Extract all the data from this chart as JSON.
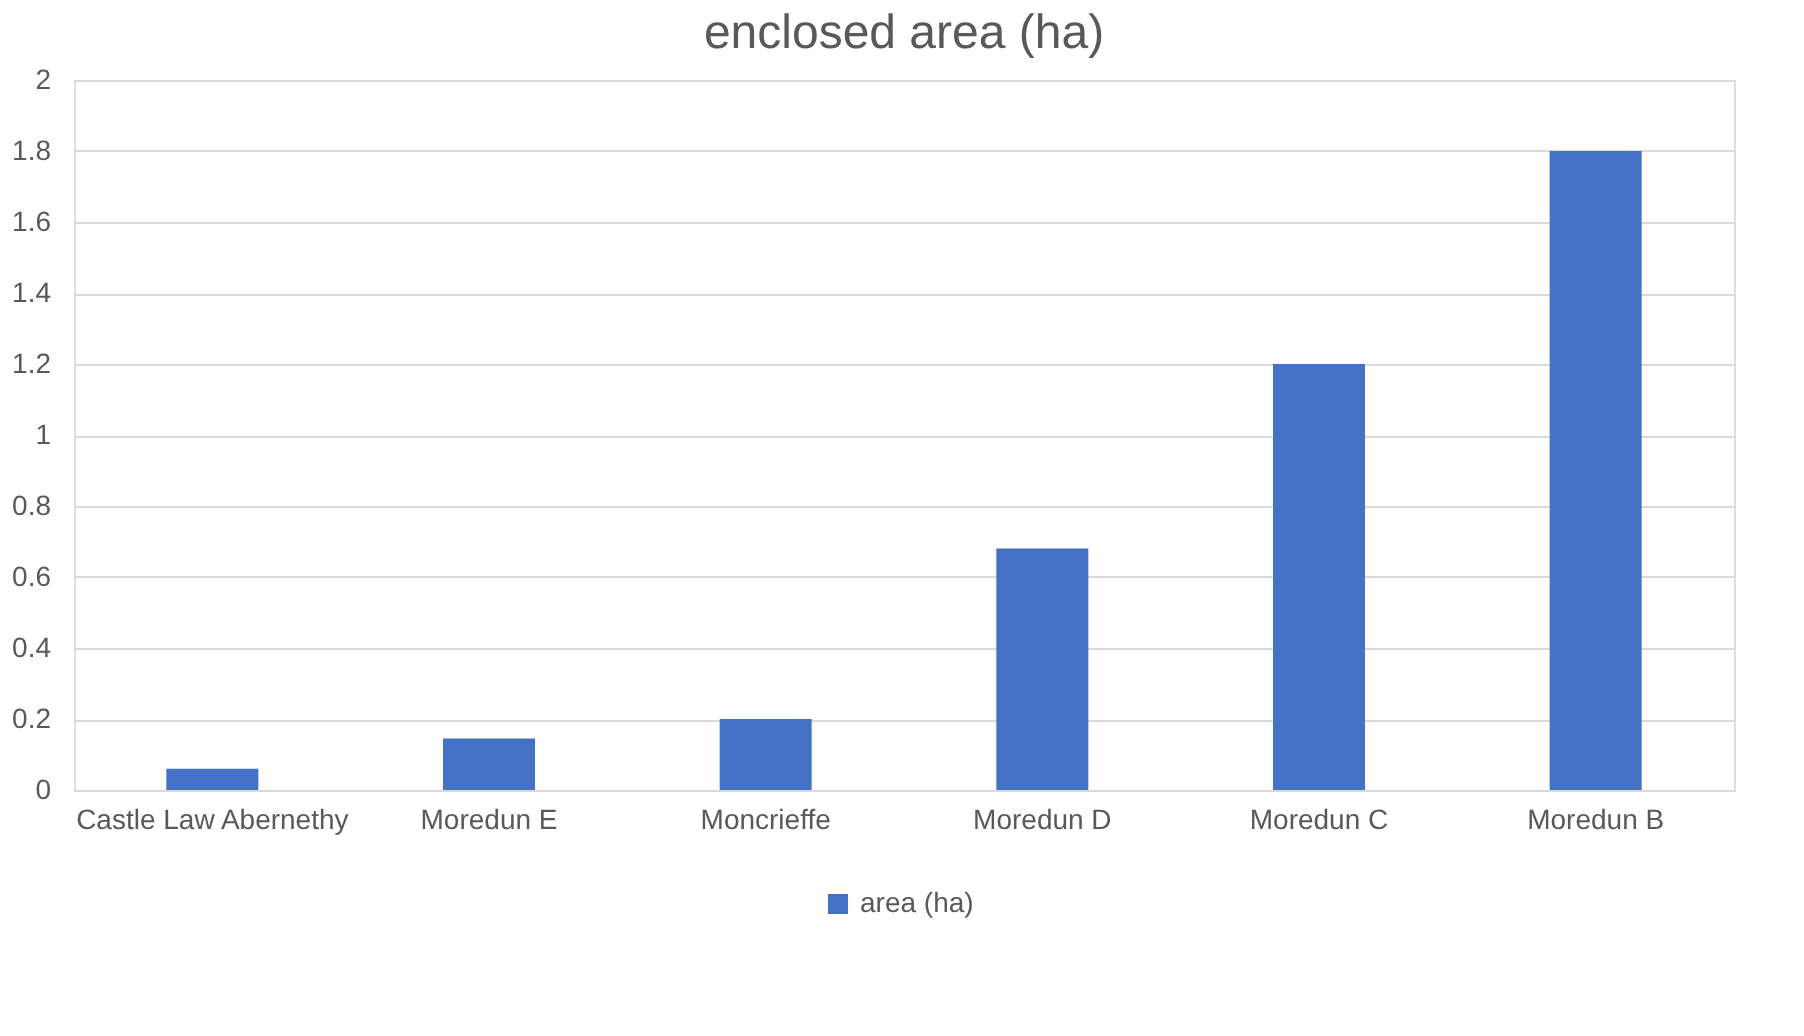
{
  "chart_data": {
    "type": "bar",
    "title": "enclosed area (ha)",
    "categories": [
      "Castle Law Abernethy",
      "Moredun E",
      "Moncrieffe",
      "Moredun D",
      "Moredun C",
      "Moredun B"
    ],
    "series": [
      {
        "name": "area (ha)",
        "color": "#4472c4",
        "values": [
          0.06,
          0.145,
          0.2,
          0.68,
          1.2,
          1.8
        ]
      }
    ],
    "ylim": [
      0,
      2
    ],
    "yticks": [
      0,
      0.2,
      0.4,
      0.6,
      0.8,
      1,
      1.2,
      1.4,
      1.6,
      1.8,
      2
    ],
    "grid": "y",
    "legend": "bottom"
  }
}
